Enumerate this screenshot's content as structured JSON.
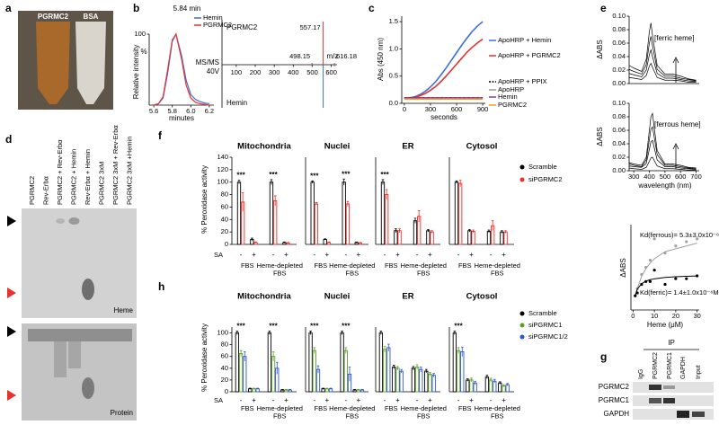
{
  "panel_labels": [
    "a",
    "b",
    "c",
    "d",
    "e",
    "f",
    "g",
    "h"
  ],
  "panel_a": {
    "tube_labels": [
      "PGRMC2",
      "BSA"
    ]
  },
  "panel_d": {
    "lanes": [
      "PGRMC2",
      "Rev-Erbα",
      "PGRMC2 + Rev-Erbα",
      "PGRMC2 + Hemin",
      "Rev-Erbα + Hemin",
      "PGRMC2 3xM",
      "PGRMC2 3xM + Rev-Erbα",
      "PGRMC2 3xM +Hemin"
    ],
    "gel_labels": [
      "Heme",
      "Protein"
    ]
  },
  "panel_g": {
    "ip_label": "IP",
    "lanes": [
      "IgG",
      "PGRMC2",
      "PGRMC1",
      "GAPDH",
      "Input"
    ],
    "rows": [
      "PGRMC2",
      "PGRMC1",
      "GAPDH"
    ]
  },
  "chart_data": [
    {
      "type": "line",
      "annotation": "5.84 min",
      "y_label": "Relative intensity",
      "y_unit": "%",
      "x_label": "minutes",
      "x": [
        5.6,
        5.65,
        5.7,
        5.75,
        5.8,
        5.84,
        5.9,
        5.95,
        6.0,
        6.05,
        6.1,
        6.15,
        6.2
      ],
      "series": [
        {
          "name": "Hemin",
          "color": "#3b6fd8",
          "values": [
            0,
            2,
            10,
            45,
            90,
            100,
            70,
            35,
            15,
            8,
            5,
            3,
            2
          ]
        },
        {
          "name": "PGRMC2",
          "color": "#e8312d",
          "values": [
            0,
            2,
            12,
            50,
            92,
            100,
            65,
            28,
            10,
            4,
            2,
            1,
            0
          ]
        }
      ],
      "xlim": [
        5.55,
        6.25
      ],
      "ylim": [
        0,
        100
      ],
      "xticks": [
        5.6,
        5.8,
        {
          "value": 6,
          "label": "6.0"
        },
        6.2
      ],
      "yticks": [
        100
      ]
    },
    {
      "type": "stem",
      "mode_label": "MS/MS",
      "voltage_label": "40V",
      "x_label": "m/z",
      "x": [
        498.15,
        557.17,
        616.18
      ],
      "series": [
        {
          "name": "PGRMC2",
          "color": "#e8312d",
          "values": [
            4,
            100,
            4
          ]
        },
        {
          "name": "Hemin",
          "color": "#3b6fd8",
          "values": [
            4,
            100,
            4
          ]
        }
      ],
      "xlim": [
        25,
        630
      ],
      "ylim": [
        0,
        100
      ],
      "xticks": [
        100,
        200,
        300,
        400,
        500,
        600
      ]
    },
    {
      "type": "line",
      "y_label": "Abs (450 nm)",
      "x_label": "seconds",
      "x": [
        0,
        60,
        120,
        180,
        240,
        300,
        360,
        420,
        480,
        540,
        600,
        660,
        720,
        780,
        840,
        900
      ],
      "series": [
        {
          "name": "ApoHRP + Hemin",
          "color": "#3b6fd8",
          "values": [
            0.1,
            0.1,
            0.12,
            0.16,
            0.22,
            0.3,
            0.4,
            0.52,
            0.65,
            0.79,
            0.93,
            1.07,
            1.2,
            1.32,
            1.42,
            1.5
          ]
        },
        {
          "name": "ApoHRP + PGRMC2",
          "color": "#e8312d",
          "values": [
            0.1,
            0.1,
            0.11,
            0.14,
            0.18,
            0.24,
            0.31,
            0.4,
            0.5,
            0.61,
            0.72,
            0.83,
            0.94,
            1.03,
            1.11,
            1.18
          ]
        },
        {
          "name": "ApoHRP + PPIX",
          "color": "#000000",
          "dashed": true,
          "values": [
            0.1,
            0.1,
            0.1,
            0.1,
            0.1,
            0.1,
            0.1,
            0.1,
            0.1,
            0.1,
            0.1,
            0.1,
            0.1,
            0.1,
            0.1,
            0.1
          ]
        },
        {
          "name": "ApoHRP",
          "color": "#9a9a9a",
          "values": [
            0.09,
            0.09,
            0.09,
            0.09,
            0.09,
            0.09,
            0.09,
            0.09,
            0.09,
            0.09,
            0.09,
            0.09,
            0.09,
            0.09,
            0.09,
            0.09
          ]
        },
        {
          "name": "Hemin",
          "color": "#8b3a9e",
          "values": [
            0.1,
            0.1,
            0.1,
            0.1,
            0.1,
            0.1,
            0.1,
            0.1,
            0.1,
            0.1,
            0.1,
            0.1,
            0.1,
            0.1,
            0.1,
            0.1
          ]
        },
        {
          "name": "PGRMC2",
          "color": "#f0a020",
          "values": [
            0.08,
            0.08,
            0.08,
            0.08,
            0.08,
            0.08,
            0.08,
            0.08,
            0.08,
            0.08,
            0.08,
            0.08,
            0.08,
            0.08,
            0.08,
            0.08
          ]
        }
      ],
      "xlim": [
        -30,
        930
      ],
      "ylim": [
        0,
        1.6
      ],
      "xticks": [
        0,
        300,
        600,
        900
      ],
      "yticks": [
        {
          "value": 0,
          "label": "0.0"
        },
        0.5,
        {
          "value": 1,
          "label": "1.0"
        },
        1.5
      ]
    },
    {
      "type": "line",
      "annotation": "[ferric heme]",
      "y_label": "ΔABS",
      "x": [
        270,
        300,
        350,
        380,
        400,
        410,
        420,
        450,
        500,
        550,
        600,
        650,
        700
      ],
      "series": [
        {
          "color": "#000000",
          "values": [
            0.027,
            0.023,
            0.018,
            0.036,
            0.077,
            0.09,
            0.072,
            0.027,
            0.014,
            0.014,
            0.011,
            0.007,
            0.005
          ]
        },
        {
          "color": "#000000",
          "values": [
            0.021,
            0.018,
            0.014,
            0.028,
            0.06,
            0.07,
            0.056,
            0.021,
            0.011,
            0.011,
            0.008,
            0.006,
            0.004
          ]
        },
        {
          "color": "#000000",
          "values": [
            0.015,
            0.013,
            0.01,
            0.02,
            0.043,
            0.05,
            0.04,
            0.015,
            0.008,
            0.008,
            0.006,
            0.004,
            0.003
          ]
        },
        {
          "color": "#000000",
          "values": [
            0.009,
            0.008,
            0.006,
            0.012,
            0.026,
            0.03,
            0.024,
            0.009,
            0.005,
            0.005,
            0.004,
            0.002,
            0.002
          ]
        }
      ],
      "xlim": [
        270,
        720
      ],
      "ylim": [
        0,
        0.1
      ],
      "yticks": [
        {
          "value": 0,
          "label": "0.00"
        },
        0.02,
        0.04,
        0.06,
        0.08,
        {
          "value": 0.1,
          "label": "0.10"
        }
      ]
    },
    {
      "type": "line",
      "annotation": "[ferrous heme]",
      "y_label": "ΔABS",
      "x_label": "wavelength (nm)",
      "x": [
        270,
        300,
        350,
        380,
        400,
        410,
        420,
        450,
        500,
        550,
        600,
        650,
        700
      ],
      "series": [
        {
          "color": "#000000",
          "values": [
            0.012,
            0.01,
            0.008,
            0.02,
            0.06,
            0.08,
            0.085,
            0.03,
            0.01,
            0.01,
            0.008,
            0.005,
            0.004
          ]
        },
        {
          "color": "#000000",
          "values": [
            0.01,
            0.008,
            0.006,
            0.016,
            0.046,
            0.062,
            0.065,
            0.024,
            0.008,
            0.008,
            0.006,
            0.004,
            0.003
          ]
        },
        {
          "color": "#000000",
          "values": [
            0.007,
            0.006,
            0.005,
            0.011,
            0.032,
            0.043,
            0.045,
            0.016,
            0.006,
            0.006,
            0.004,
            0.003,
            0.002
          ]
        },
        {
          "color": "#000000",
          "values": [
            0.004,
            0.003,
            0.002,
            0.005,
            0.014,
            0.019,
            0.02,
            0.007,
            0.003,
            0.003,
            0.002,
            0.001,
            0.001
          ]
        }
      ],
      "xlim": [
        270,
        720
      ],
      "ylim": [
        0,
        0.1
      ],
      "xticks": [
        300,
        400,
        500,
        600,
        700
      ],
      "yticks": [
        {
          "value": 0,
          "label": "0.00"
        },
        0.02,
        0.04,
        0.06,
        0.08,
        {
          "value": 0.1,
          "label": "0.10"
        }
      ]
    },
    {
      "type": "scatter",
      "y_label": "ΔABS",
      "x_label": "Heme (μM)",
      "x": [
        1,
        2,
        4,
        6,
        8,
        10,
        15,
        20,
        25,
        30
      ],
      "series": [
        {
          "color": "#a0a0a0",
          "annotation": "Kd(ferrous)= 5.3±3.0x10⁻⁶M",
          "values": [
            0.01,
            0.015,
            0.025,
            0.03,
            0.035,
            0.05,
            0.04,
            0.045,
            0.048,
            0.05
          ],
          "fit_values": [
            0.0087,
            0.015,
            0.0236,
            0.029,
            0.033,
            0.036,
            0.041,
            0.043,
            0.045,
            0.047
          ]
        },
        {
          "color": "#000000",
          "annotation": "Kd(ferric)= 1.4±1.0x10⁻⁶M",
          "values": [
            0.01,
            0.012,
            0.018,
            0.02,
            0.02,
            0.028,
            0.018,
            0.022,
            0.022,
            0.024
          ],
          "fit_values": [
            0.0104,
            0.0147,
            0.0185,
            0.0203,
            0.0213,
            0.0219,
            0.0229,
            0.0234,
            0.0237,
            0.0239
          ]
        }
      ],
      "xlim": [
        -1,
        31
      ],
      "ylim": [
        0,
        0.06
      ],
      "xticks": [
        0,
        10,
        20,
        30
      ]
    },
    {
      "type": "grouped-bar",
      "y_label": "% Peroxidase activity",
      "sa_label": "SA",
      "condition_labels": [
        [
          "FBS"
        ],
        [
          "Heme-depleted",
          "FBS"
        ]
      ],
      "series": [
        {
          "name": "Scramble",
          "color": "#000000"
        },
        {
          "name": "siPGRMC2",
          "color": "#e8312d"
        }
      ],
      "ylim": [
        0,
        140
      ],
      "yticks": [
        0,
        20,
        40,
        60,
        80,
        100,
        120,
        140
      ],
      "panels": [
        {
          "title": "Mitochondria",
          "categories": [
            "-",
            "+",
            "-",
            "+"
          ],
          "values": [
            [
              100,
              8,
              100,
              3
            ],
            [
              68,
              3,
              70,
              2
            ]
          ],
          "errors": [
            [
              3,
              2,
              4,
              1
            ],
            [
              15,
              1,
              8,
              1
            ]
          ],
          "significance": [
            "***",
            null,
            "***",
            null
          ]
        },
        {
          "title": "Nuclei",
          "categories": [
            "-",
            "+",
            "-",
            "+"
          ],
          "values": [
            [
              100,
              8,
              100,
              3
            ],
            [
              65,
              3,
              65,
              2
            ]
          ],
          "errors": [
            [
              2,
              1,
              5,
              1
            ],
            [
              2,
              1,
              4,
              1
            ]
          ],
          "significance": [
            "***",
            null,
            "***",
            null
          ]
        },
        {
          "title": "ER",
          "categories": [
            "-",
            "+",
            "-",
            "+"
          ],
          "values": [
            [
              100,
              22,
              38,
              22
            ],
            [
              80,
              22,
              45,
              20
            ]
          ],
          "errors": [
            [
              4,
              3,
              4,
              2
            ],
            [
              8,
              3,
              9,
              2
            ]
          ],
          "significance": [
            "***",
            null,
            null,
            null
          ]
        },
        {
          "title": "Cytosol",
          "categories": [
            "-",
            "+",
            "-",
            "+"
          ],
          "values": [
            [
              100,
              22,
              21,
              20
            ],
            [
              98,
              21,
              30,
              20
            ]
          ],
          "errors": [
            [
              2,
              2,
              2,
              2
            ],
            [
              5,
              2,
              8,
              2
            ]
          ],
          "significance": [
            null,
            null,
            null,
            null
          ]
        }
      ]
    },
    {
      "type": "grouped-bar",
      "y_label": "% Peroxidase activity",
      "sa_label": "SA",
      "condition_labels": [
        [
          "FBS"
        ],
        [
          "Heme-depleted",
          "FBS"
        ]
      ],
      "series": [
        {
          "name": "Scramble",
          "color": "#000000"
        },
        {
          "name": "siPGRMC1",
          "color": "#5aa02c"
        },
        {
          "name": "siPGRMC1/2",
          "color": "#2f55d4"
        }
      ],
      "ylim": [
        0,
        110
      ],
      "yticks": [
        0,
        20,
        40,
        60,
        80,
        100
      ],
      "panels": [
        {
          "title": "Mitochondria",
          "categories": [
            "-",
            "+",
            "-",
            "+"
          ],
          "values": [
            [
              100,
              5,
              100,
              3
            ],
            [
              65,
              5,
              60,
              3
            ],
            [
              60,
              5,
              40,
              3
            ]
          ],
          "errors": [
            [
              3,
              1,
              3,
              1
            ],
            [
              5,
              1,
              8,
              1
            ],
            [
              8,
              1,
              10,
              1
            ]
          ],
          "significance": [
            "***",
            null,
            "***",
            null
          ]
        },
        {
          "title": "Nuclei",
          "categories": [
            "-",
            "+",
            "-",
            "+"
          ],
          "values": [
            [
              100,
              5,
              100,
              3
            ],
            [
              70,
              5,
              70,
              3
            ],
            [
              38,
              5,
              30,
              3
            ]
          ],
          "errors": [
            [
              3,
              1,
              3,
              1
            ],
            [
              5,
              1,
              5,
              1
            ],
            [
              6,
              1,
              12,
              1
            ]
          ],
          "significance": [
            "***",
            null,
            "***",
            null
          ]
        },
        {
          "title": "ER",
          "categories": [
            "-",
            "+",
            "-",
            "+"
          ],
          "values": [
            [
              100,
              42,
              40,
              35
            ],
            [
              72,
              40,
              42,
              30
            ],
            [
              75,
              35,
              38,
              28
            ]
          ],
          "errors": [
            [
              3,
              3,
              3,
              3
            ],
            [
              5,
              3,
              4,
              3
            ],
            [
              6,
              3,
              4,
              3
            ]
          ],
          "significance": [
            null,
            null,
            null,
            null
          ]
        },
        {
          "title": "Cytosol",
          "categories": [
            "-",
            "+",
            "-",
            "+"
          ],
          "values": [
            [
              100,
              20,
              25,
              15
            ],
            [
              70,
              20,
              20,
              10
            ],
            [
              68,
              15,
              18,
              12
            ]
          ],
          "errors": [
            [
              3,
              2,
              3,
              2
            ],
            [
              5,
              3,
              3,
              2
            ],
            [
              8,
              3,
              3,
              2
            ]
          ],
          "significance": [
            "***",
            null,
            null,
            null
          ]
        }
      ]
    }
  ]
}
